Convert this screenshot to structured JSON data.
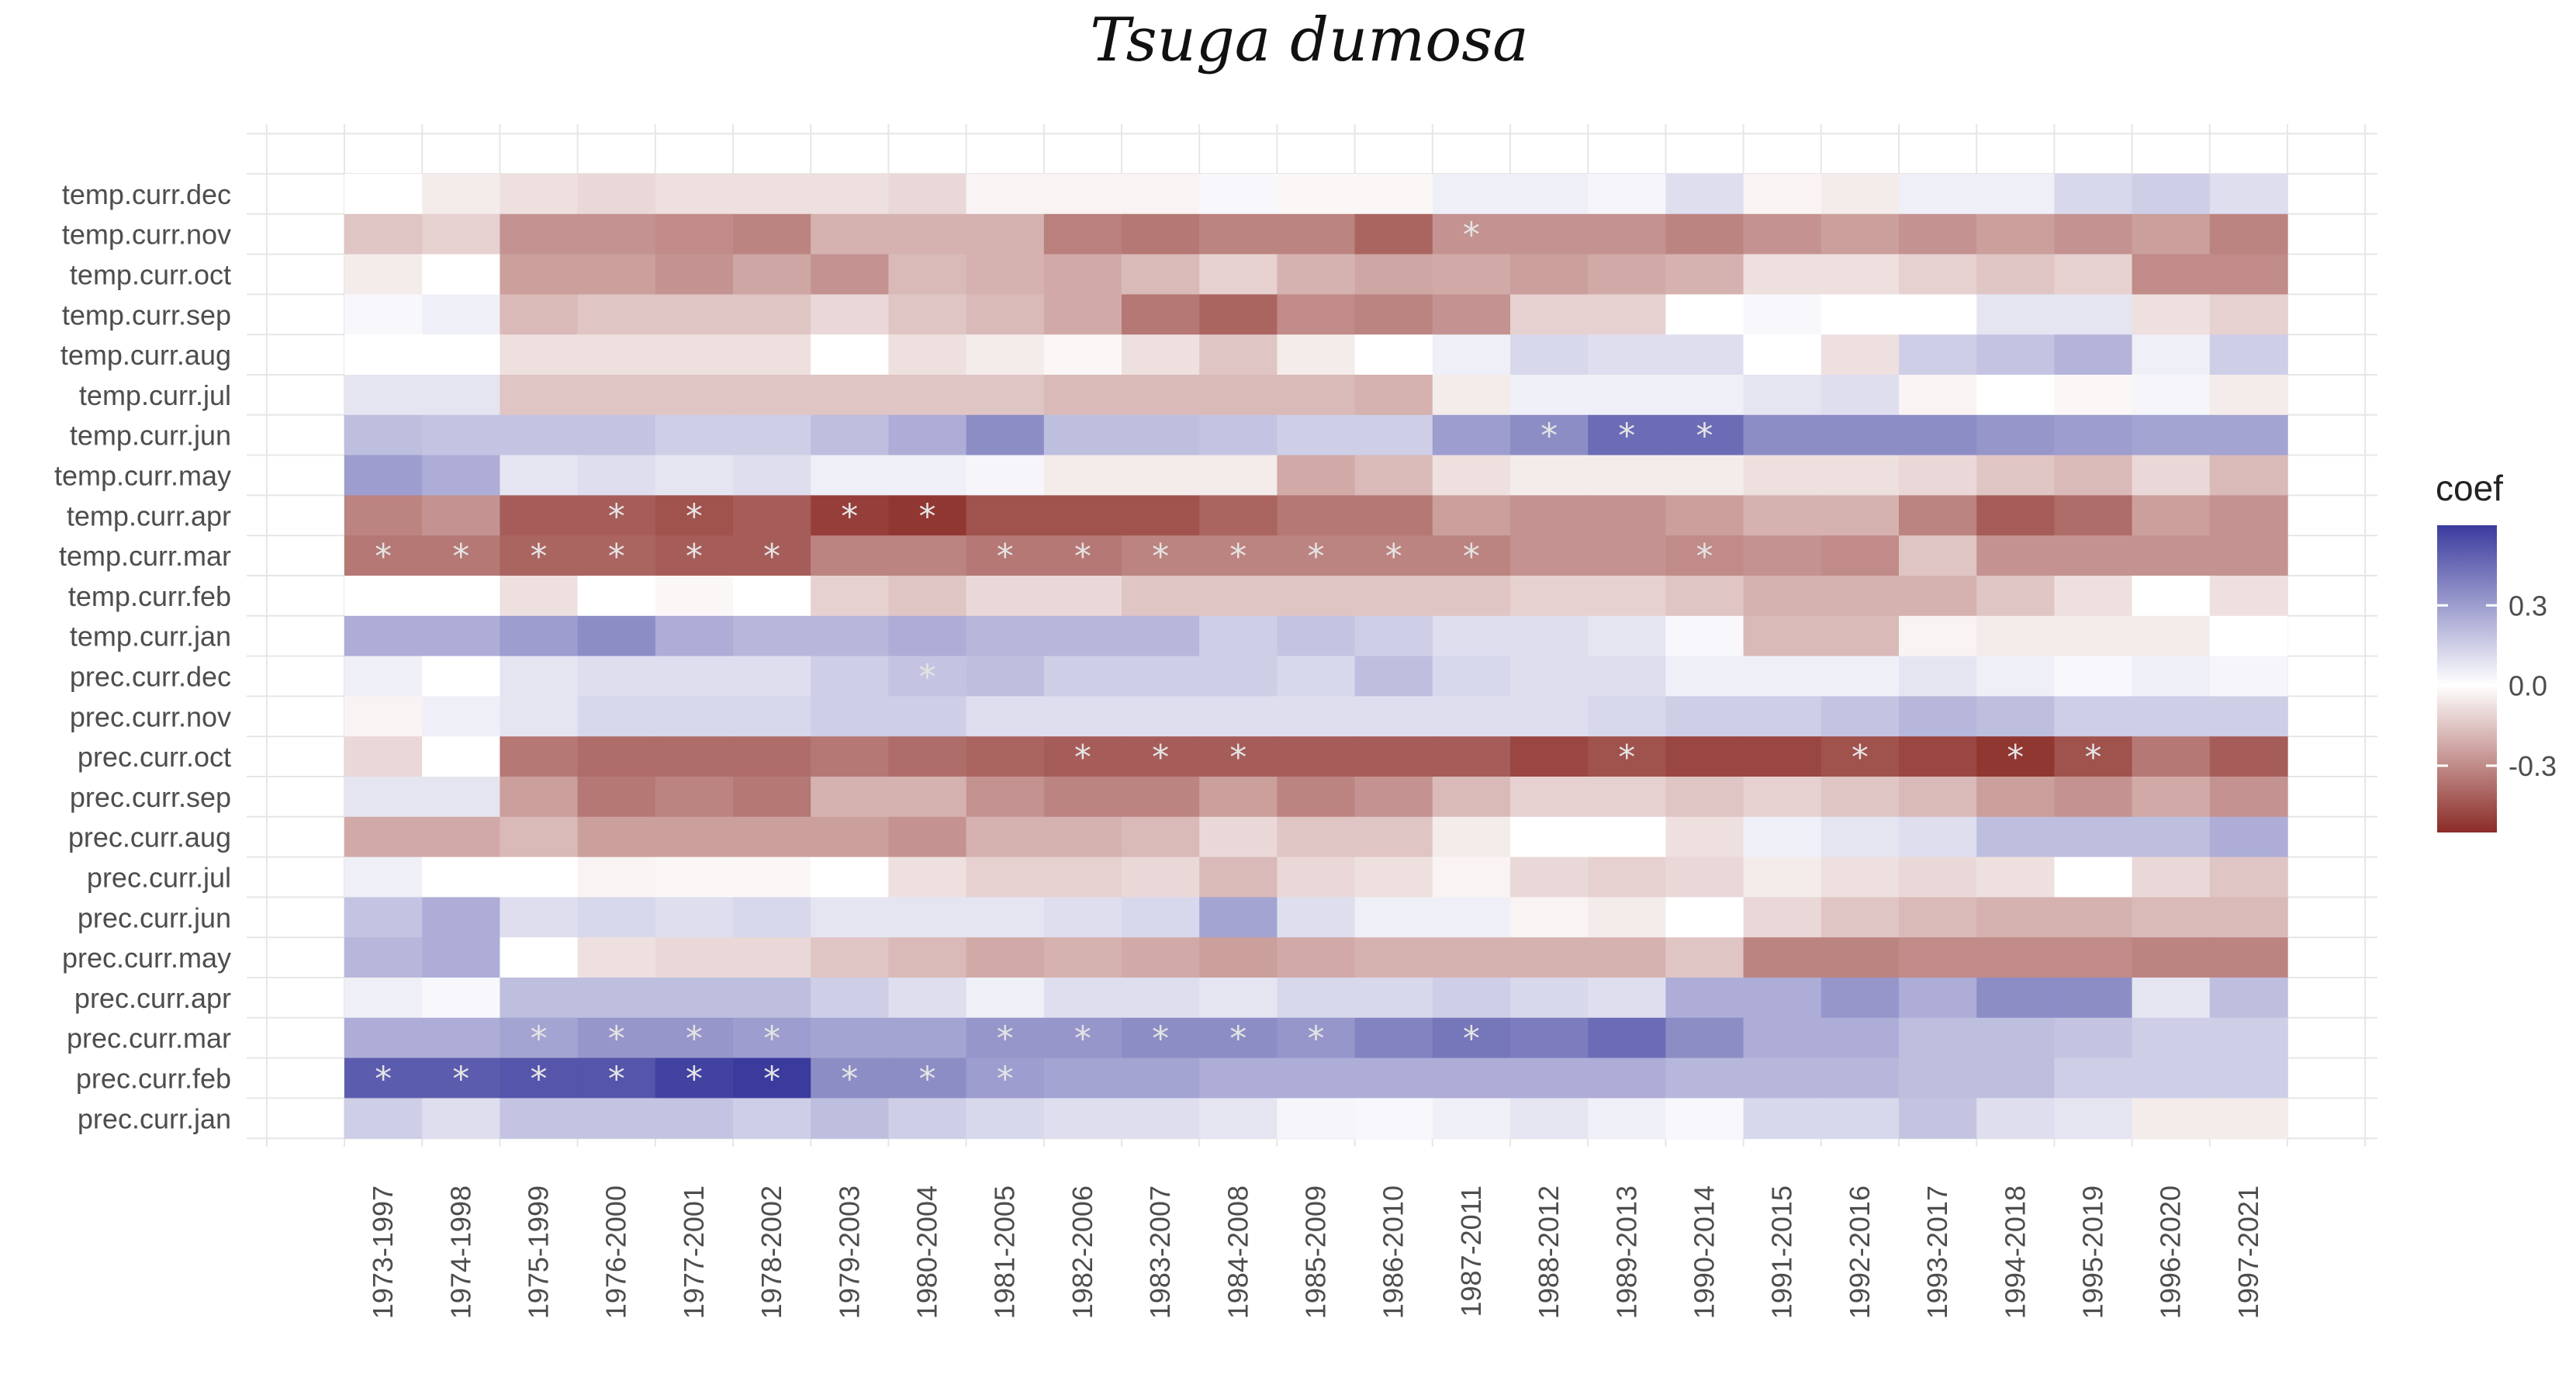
{
  "chart_data": {
    "type": "heatmap",
    "title": "Tsuga dumosa",
    "xlabel": "",
    "ylabel": "",
    "rows": [
      "temp.curr.dec",
      "temp.curr.nov",
      "temp.curr.oct",
      "temp.curr.sep",
      "temp.curr.aug",
      "temp.curr.jul",
      "temp.curr.jun",
      "temp.curr.may",
      "temp.curr.apr",
      "temp.curr.mar",
      "temp.curr.feb",
      "temp.curr.jan",
      "prec.curr.dec",
      "prec.curr.nov",
      "prec.curr.oct",
      "prec.curr.sep",
      "prec.curr.aug",
      "prec.curr.jul",
      "prec.curr.jun",
      "prec.curr.may",
      "prec.curr.apr",
      "prec.curr.mar",
      "prec.curr.feb",
      "prec.curr.jan"
    ],
    "columns": [
      "1973-1997",
      "1974-1998",
      "1975-1999",
      "1976-2000",
      "1977-2001",
      "1978-2002",
      "1979-2003",
      "1980-2004",
      "1981-2005",
      "1982-2006",
      "1983-2007",
      "1984-2008",
      "1985-2009",
      "1986-2010",
      "1987-2011",
      "1988-2012",
      "1989-2013",
      "1990-2014",
      "1991-2015",
      "1992-2016",
      "1993-2017",
      "1994-2018",
      "1995-2019",
      "1996-2020",
      "1997-2021"
    ],
    "values": [
      [
        0.0,
        -0.05,
        -0.08,
        -0.1,
        -0.08,
        -0.08,
        -0.08,
        -0.1,
        -0.03,
        -0.03,
        -0.03,
        0.02,
        -0.02,
        -0.02,
        0.05,
        0.05,
        0.03,
        0.1,
        -0.03,
        -0.05,
        0.05,
        0.05,
        0.12,
        0.15,
        0.1
      ],
      [
        -0.15,
        -0.12,
        -0.28,
        -0.28,
        -0.3,
        -0.32,
        -0.2,
        -0.2,
        -0.2,
        -0.33,
        -0.35,
        -0.32,
        -0.32,
        -0.4,
        -0.28,
        -0.28,
        -0.28,
        -0.32,
        -0.28,
        -0.25,
        -0.28,
        -0.25,
        -0.28,
        -0.25,
        -0.32
      ],
      [
        -0.05,
        0.0,
        -0.25,
        -0.25,
        -0.28,
        -0.23,
        -0.28,
        -0.18,
        -0.2,
        -0.22,
        -0.18,
        -0.12,
        -0.2,
        -0.23,
        -0.22,
        -0.25,
        -0.22,
        -0.2,
        -0.08,
        -0.08,
        -0.12,
        -0.15,
        -0.12,
        -0.3,
        -0.3
      ],
      [
        0.02,
        0.05,
        -0.18,
        -0.15,
        -0.15,
        -0.15,
        -0.1,
        -0.15,
        -0.18,
        -0.22,
        -0.35,
        -0.4,
        -0.3,
        -0.32,
        -0.28,
        -0.12,
        -0.12,
        0.0,
        0.02,
        0.0,
        0.0,
        0.08,
        0.08,
        -0.08,
        -0.12
      ],
      [
        0.0,
        0.0,
        -0.08,
        -0.08,
        -0.08,
        -0.08,
        0.0,
        -0.08,
        -0.05,
        -0.02,
        -0.08,
        -0.15,
        -0.05,
        0.0,
        0.05,
        0.12,
        0.1,
        0.1,
        0.0,
        -0.08,
        0.15,
        0.18,
        0.23,
        0.05,
        0.15
      ],
      [
        0.08,
        0.08,
        -0.15,
        -0.15,
        -0.15,
        -0.15,
        -0.15,
        -0.15,
        -0.15,
        -0.18,
        -0.18,
        -0.18,
        -0.18,
        -0.2,
        -0.05,
        0.05,
        0.05,
        0.05,
        0.08,
        0.1,
        -0.03,
        0.0,
        -0.02,
        0.03,
        -0.05
      ],
      [
        0.2,
        0.18,
        0.18,
        0.18,
        0.15,
        0.15,
        0.2,
        0.25,
        0.35,
        0.2,
        0.2,
        0.18,
        0.15,
        0.15,
        0.3,
        0.35,
        0.45,
        0.45,
        0.35,
        0.35,
        0.35,
        0.32,
        0.3,
        0.28,
        0.28
      ],
      [
        0.3,
        0.25,
        0.08,
        0.1,
        0.08,
        0.1,
        0.05,
        0.05,
        0.03,
        -0.05,
        -0.05,
        -0.05,
        -0.22,
        -0.18,
        -0.08,
        -0.05,
        -0.05,
        -0.05,
        -0.08,
        -0.08,
        -0.1,
        -0.15,
        -0.18,
        -0.1,
        -0.18
      ],
      [
        -0.32,
        -0.28,
        -0.42,
        -0.42,
        -0.45,
        -0.42,
        -0.5,
        -0.52,
        -0.45,
        -0.45,
        -0.45,
        -0.4,
        -0.35,
        -0.35,
        -0.25,
        -0.28,
        -0.28,
        -0.25,
        -0.2,
        -0.2,
        -0.32,
        -0.42,
        -0.38,
        -0.25,
        -0.28
      ],
      [
        -0.35,
        -0.35,
        -0.4,
        -0.4,
        -0.42,
        -0.42,
        -0.32,
        -0.32,
        -0.35,
        -0.35,
        -0.32,
        -0.32,
        -0.32,
        -0.32,
        -0.32,
        -0.28,
        -0.28,
        -0.3,
        -0.28,
        -0.3,
        -0.15,
        -0.28,
        -0.28,
        -0.28,
        -0.28
      ],
      [
        0.0,
        0.0,
        -0.08,
        0.0,
        -0.02,
        0.0,
        -0.12,
        -0.15,
        -0.1,
        -0.1,
        -0.15,
        -0.15,
        -0.15,
        -0.15,
        -0.15,
        -0.12,
        -0.12,
        -0.15,
        -0.2,
        -0.2,
        -0.2,
        -0.15,
        -0.08,
        0.0,
        -0.08
      ],
      [
        0.25,
        0.25,
        0.3,
        0.35,
        0.25,
        0.22,
        0.22,
        0.25,
        0.22,
        0.22,
        0.22,
        0.15,
        0.18,
        0.15,
        0.1,
        0.1,
        0.08,
        0.02,
        -0.18,
        -0.18,
        -0.03,
        -0.05,
        -0.05,
        -0.05,
        0.0
      ],
      [
        0.05,
        0.0,
        0.08,
        0.1,
        0.1,
        0.1,
        0.15,
        0.18,
        0.2,
        0.15,
        0.15,
        0.15,
        0.12,
        0.2,
        0.12,
        0.1,
        0.1,
        0.05,
        0.05,
        0.05,
        0.08,
        0.05,
        0.02,
        0.05,
        0.03
      ],
      [
        -0.03,
        0.05,
        0.08,
        0.12,
        0.12,
        0.12,
        0.15,
        0.15,
        0.1,
        0.1,
        0.1,
        0.1,
        0.1,
        0.1,
        0.1,
        0.1,
        0.12,
        0.15,
        0.15,
        0.18,
        0.22,
        0.2,
        0.15,
        0.15,
        0.15
      ],
      [
        -0.1,
        0.0,
        -0.35,
        -0.38,
        -0.38,
        -0.38,
        -0.35,
        -0.38,
        -0.4,
        -0.42,
        -0.42,
        -0.42,
        -0.42,
        -0.42,
        -0.42,
        -0.48,
        -0.45,
        -0.48,
        -0.48,
        -0.45,
        -0.48,
        -0.52,
        -0.45,
        -0.35,
        -0.42
      ],
      [
        0.08,
        0.08,
        -0.25,
        -0.35,
        -0.32,
        -0.35,
        -0.2,
        -0.2,
        -0.28,
        -0.32,
        -0.32,
        -0.25,
        -0.32,
        -0.28,
        -0.18,
        -0.12,
        -0.12,
        -0.15,
        -0.12,
        -0.15,
        -0.18,
        -0.25,
        -0.28,
        -0.22,
        -0.28
      ],
      [
        -0.22,
        -0.22,
        -0.18,
        -0.25,
        -0.25,
        -0.25,
        -0.25,
        -0.28,
        -0.2,
        -0.2,
        -0.18,
        -0.1,
        -0.15,
        -0.15,
        -0.05,
        0.0,
        0.0,
        -0.08,
        0.05,
        0.08,
        0.1,
        0.2,
        0.2,
        0.2,
        0.25
      ],
      [
        0.05,
        0.0,
        0.0,
        -0.03,
        -0.02,
        -0.02,
        0.0,
        -0.08,
        -0.12,
        -0.12,
        -0.1,
        -0.18,
        -0.1,
        -0.08,
        -0.03,
        -0.1,
        -0.12,
        -0.1,
        -0.05,
        -0.08,
        -0.1,
        -0.08,
        0.0,
        -0.1,
        -0.15
      ],
      [
        0.18,
        0.25,
        0.1,
        0.12,
        0.1,
        0.12,
        0.08,
        0.08,
        0.08,
        0.1,
        0.12,
        0.28,
        0.1,
        0.05,
        0.05,
        -0.03,
        -0.05,
        0.0,
        -0.1,
        -0.15,
        -0.18,
        -0.2,
        -0.2,
        -0.18,
        -0.18
      ],
      [
        0.22,
        0.25,
        0.0,
        -0.08,
        -0.1,
        -0.1,
        -0.15,
        -0.18,
        -0.22,
        -0.2,
        -0.22,
        -0.25,
        -0.22,
        -0.2,
        -0.2,
        -0.2,
        -0.2,
        -0.15,
        -0.32,
        -0.32,
        -0.3,
        -0.3,
        -0.3,
        -0.32,
        -0.32
      ],
      [
        0.05,
        0.02,
        0.2,
        0.2,
        0.2,
        0.2,
        0.15,
        0.1,
        0.05,
        0.1,
        0.1,
        0.08,
        0.12,
        0.12,
        0.15,
        0.12,
        0.1,
        0.25,
        0.25,
        0.32,
        0.25,
        0.35,
        0.35,
        0.08,
        0.2
      ],
      [
        0.25,
        0.25,
        0.28,
        0.32,
        0.32,
        0.3,
        0.28,
        0.28,
        0.32,
        0.32,
        0.35,
        0.35,
        0.32,
        0.38,
        0.42,
        0.4,
        0.45,
        0.35,
        0.25,
        0.25,
        0.2,
        0.2,
        0.18,
        0.15,
        0.15
      ],
      [
        0.5,
        0.5,
        0.52,
        0.52,
        0.58,
        0.6,
        0.35,
        0.35,
        0.3,
        0.28,
        0.28,
        0.25,
        0.25,
        0.25,
        0.25,
        0.25,
        0.25,
        0.22,
        0.22,
        0.22,
        0.2,
        0.2,
        0.15,
        0.15,
        0.15
      ],
      [
        0.15,
        0.1,
        0.18,
        0.18,
        0.18,
        0.15,
        0.2,
        0.15,
        0.12,
        0.1,
        0.1,
        0.08,
        0.03,
        0.02,
        0.05,
        0.08,
        0.05,
        0.02,
        0.12,
        0.12,
        0.18,
        0.1,
        0.08,
        -0.05,
        -0.05
      ]
    ],
    "significant": [
      [
        1,
        14
      ],
      [
        1,
        14
      ],
      [
        8,
        3
      ],
      [
        8,
        4
      ],
      [
        8,
        6
      ],
      [
        8,
        7
      ],
      [
        9,
        0
      ],
      [
        9,
        1
      ],
      [
        9,
        2
      ],
      [
        9,
        3
      ],
      [
        9,
        4
      ],
      [
        9,
        5
      ],
      [
        9,
        8
      ],
      [
        9,
        9
      ],
      [
        9,
        10
      ],
      [
        9,
        11
      ],
      [
        9,
        12
      ],
      [
        9,
        13
      ],
      [
        9,
        14
      ],
      [
        9,
        17
      ],
      [
        6,
        15
      ],
      [
        6,
        16
      ],
      [
        6,
        17
      ],
      [
        12,
        7
      ],
      [
        14,
        9
      ],
      [
        14,
        10
      ],
      [
        14,
        11
      ],
      [
        14,
        16
      ],
      [
        14,
        19
      ],
      [
        14,
        21
      ],
      [
        14,
        22
      ],
      [
        21,
        2
      ],
      [
        21,
        3
      ],
      [
        21,
        4
      ],
      [
        21,
        5
      ],
      [
        21,
        8
      ],
      [
        21,
        9
      ],
      [
        21,
        10
      ],
      [
        21,
        11
      ],
      [
        21,
        12
      ],
      [
        21,
        14
      ],
      [
        22,
        0
      ],
      [
        22,
        1
      ],
      [
        22,
        2
      ],
      [
        22,
        3
      ],
      [
        22,
        4
      ],
      [
        22,
        5
      ],
      [
        22,
        6
      ],
      [
        22,
        7
      ],
      [
        22,
        8
      ]
    ],
    "significance_marker": "*",
    "legend": {
      "title": "coef",
      "position": "right",
      "ticks": [
        0.3,
        0.0,
        -0.3
      ],
      "tick_labels": [
        "0.3",
        "0.0",
        "-0.3"
      ],
      "range": [
        -0.55,
        0.6
      ],
      "low_color": "#8b2b26",
      "mid_color": "#ffffff",
      "high_color": "#3b3b9e"
    },
    "grid": true
  }
}
